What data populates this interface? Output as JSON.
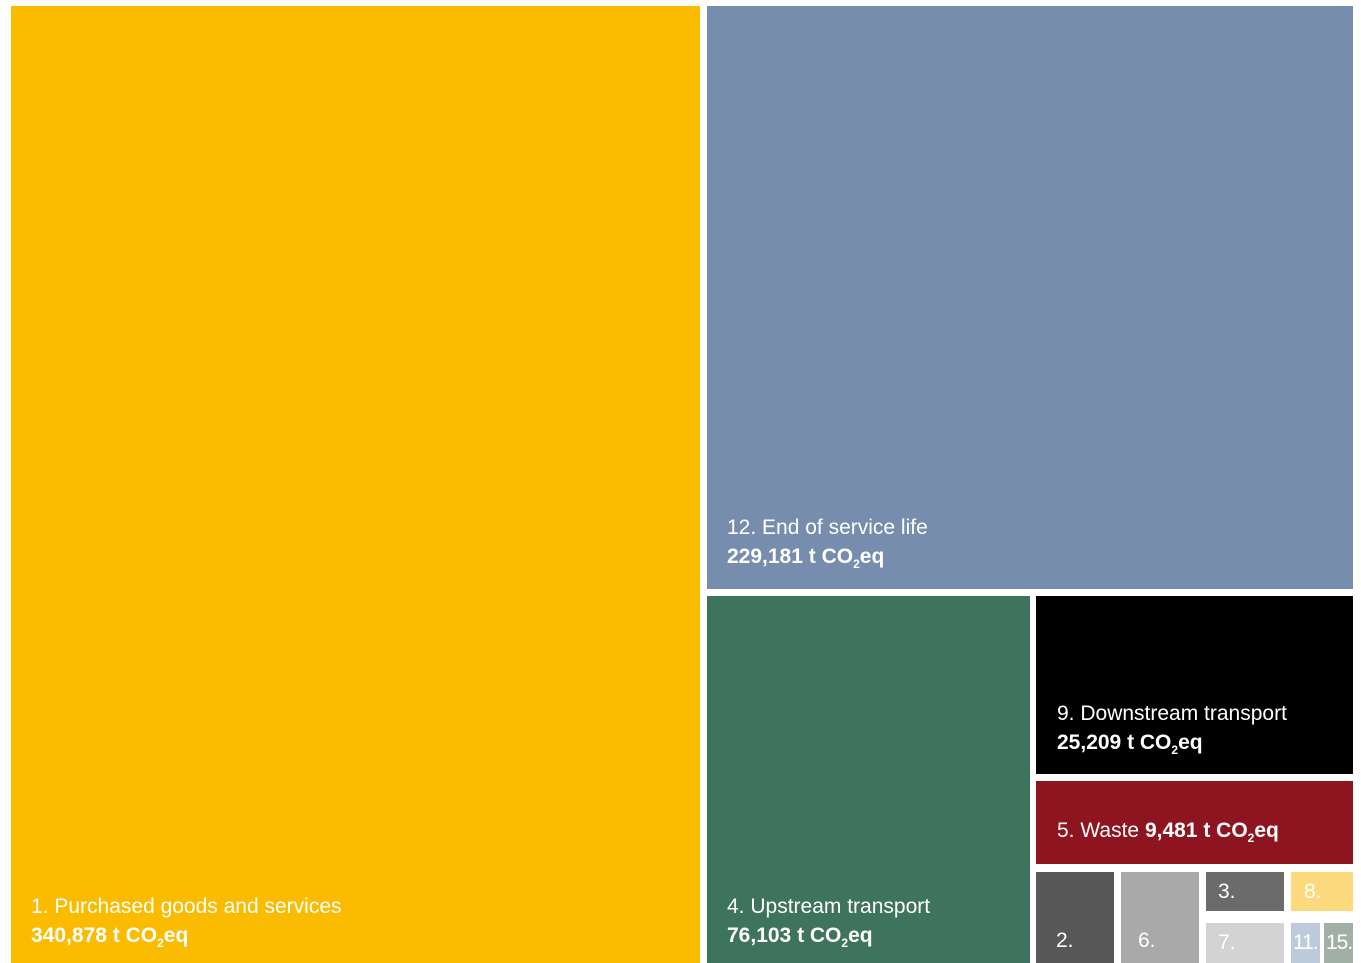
{
  "chart_data": {
    "type": "treemap",
    "unit": "t CO2eq",
    "items": [
      {
        "key": "c1",
        "label": "1. Purchased goods and services",
        "value": 340878,
        "value_text": "340,878",
        "color": "#fabb00"
      },
      {
        "key": "c12",
        "label": "12. End of service life",
        "value": 229181,
        "value_text": "229,181",
        "color": "#778dae"
      },
      {
        "key": "c4",
        "label": "4. Upstream transport",
        "value": 76103,
        "value_text": "76,103",
        "color": "#3e735e"
      },
      {
        "key": "c9",
        "label": "9. Downstream transport",
        "value": 25209,
        "value_text": "25,209",
        "color": "#000000"
      },
      {
        "key": "c5",
        "label": "5. Waste",
        "value": 9481,
        "value_text": "9,481",
        "color": "#8e1420"
      },
      {
        "key": "c2",
        "label": "2.",
        "color": "#585858"
      },
      {
        "key": "c6",
        "label": "6.",
        "color": "#a9a9a9"
      },
      {
        "key": "c3",
        "label": "3.",
        "color": "#6b6b6b"
      },
      {
        "key": "c8",
        "label": "8.",
        "color": "#fcd97c"
      },
      {
        "key": "c7",
        "label": "7.",
        "color": "#d3d3d3"
      },
      {
        "key": "c11",
        "label": "11.",
        "color": "#bccadb"
      },
      {
        "key": "c15",
        "label": "15.",
        "color": "#a0b0a5"
      }
    ]
  }
}
